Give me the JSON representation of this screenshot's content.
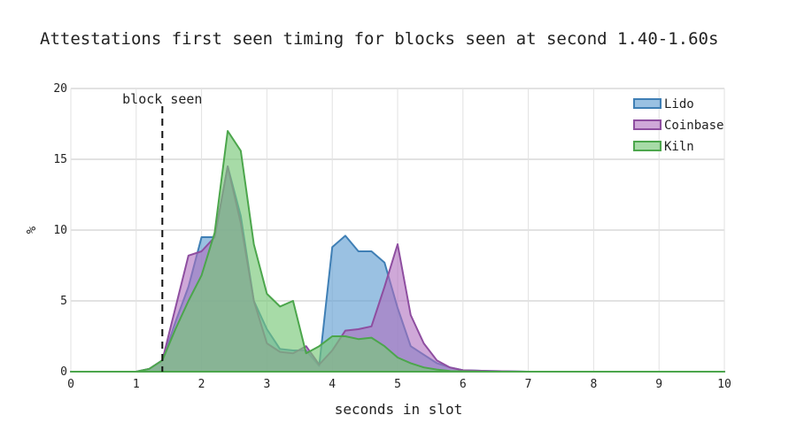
{
  "chart_data": {
    "type": "area",
    "title": "Attestations first seen timing for blocks seen at second 1.40-1.60s",
    "xlabel": "seconds in slot",
    "ylabel": "%",
    "xlim": [
      0,
      10
    ],
    "ylim": [
      0,
      20
    ],
    "xticks": [
      0,
      1,
      2,
      3,
      4,
      5,
      6,
      7,
      8,
      9,
      10
    ],
    "yticks": [
      0,
      5,
      10,
      15,
      20
    ],
    "grid": true,
    "legend": "top-right",
    "annotation": {
      "text": "block seen",
      "x": 1.4
    },
    "x": [
      0,
      1.0,
      1.2,
      1.4,
      1.6,
      1.8,
      2.0,
      2.2,
      2.4,
      2.6,
      2.8,
      3.0,
      3.2,
      3.4,
      3.6,
      3.8,
      4.0,
      4.2,
      4.4,
      4.6,
      4.8,
      5.0,
      5.2,
      5.4,
      5.6,
      5.8,
      6.0,
      6.4,
      7.0,
      8.0,
      10.0
    ],
    "series": [
      {
        "name": "Lido",
        "color": "#3f7fb5",
        "fill": "rgba(100,160,210,0.65)",
        "values": [
          0,
          0,
          0.2,
          0.8,
          3.5,
          6,
          9.5,
          9.5,
          14.5,
          11,
          5,
          3,
          1.6,
          1.5,
          1.5,
          0.4,
          8.8,
          9.6,
          8.5,
          8.5,
          7.7,
          4.5,
          1.8,
          1.2,
          0.6,
          0.3,
          0.1,
          0.05,
          0,
          0,
          0
        ]
      },
      {
        "name": "Coinbase",
        "color": "#8e4ea0",
        "fill": "rgba(175,110,190,0.6)",
        "values": [
          0,
          0,
          0.2,
          0.8,
          4.5,
          8.2,
          8.5,
          9.5,
          14.5,
          10.5,
          5,
          2,
          1.4,
          1.3,
          1.8,
          0.5,
          1.5,
          2.9,
          3,
          3.2,
          6,
          9,
          4,
          2,
          0.8,
          0.3,
          0.1,
          0.05,
          0,
          0,
          0
        ]
      },
      {
        "name": "Kiln",
        "color": "#4ca64c",
        "fill": "rgba(120,200,120,0.65)",
        "values": [
          0,
          0,
          0.2,
          0.8,
          3,
          5,
          6.8,
          9.8,
          17,
          15.6,
          9,
          5.5,
          4.6,
          5,
          1.3,
          1.8,
          2.5,
          2.5,
          2.3,
          2.4,
          1.8,
          1,
          0.6,
          0.3,
          0.15,
          0.05,
          0.02,
          0,
          0,
          0,
          0
        ]
      }
    ]
  }
}
